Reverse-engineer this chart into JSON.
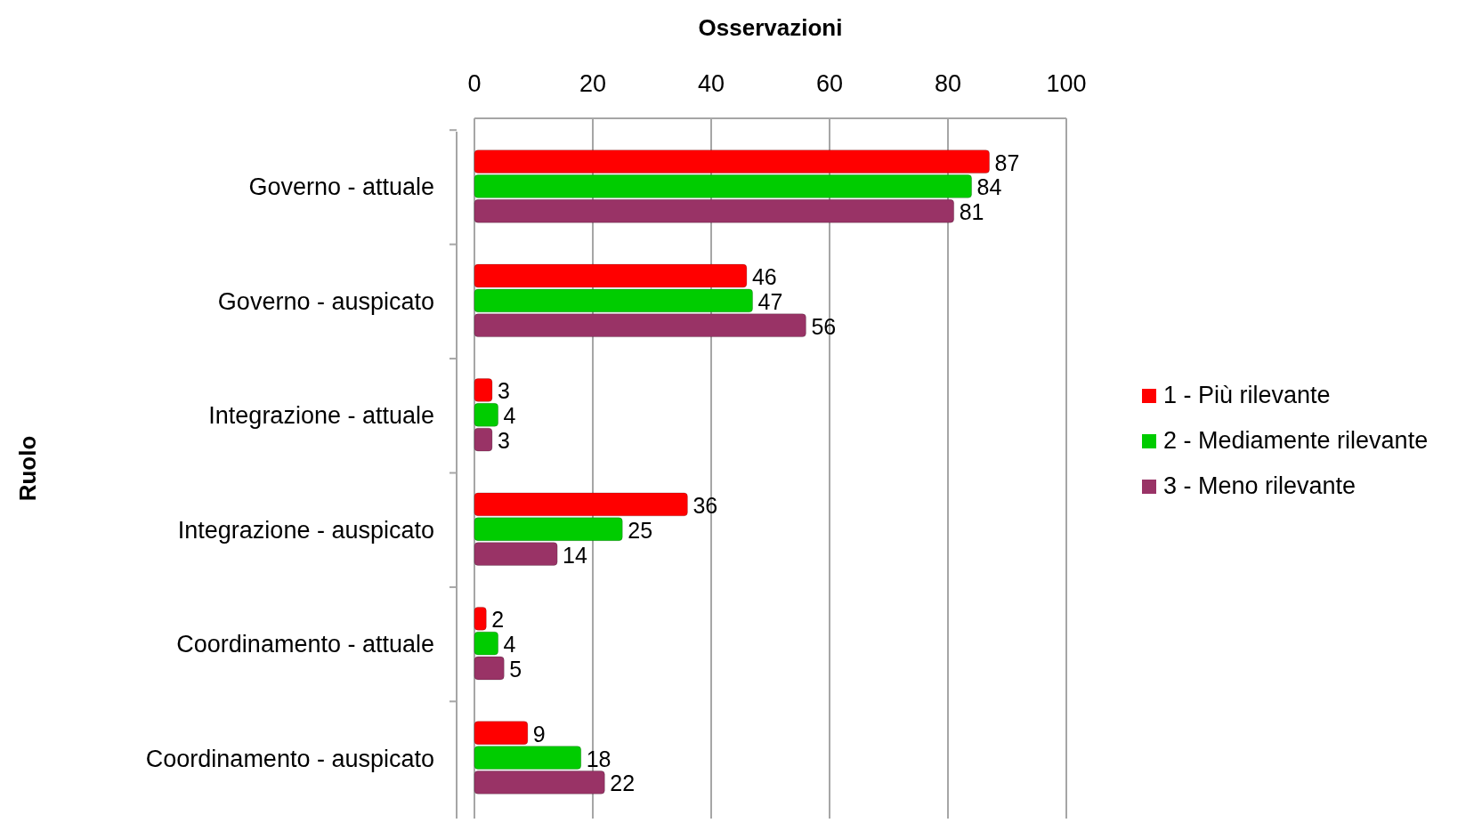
{
  "chart_data": {
    "type": "bar",
    "orientation": "horizontal",
    "xlabel": "Osservazioni",
    "ylabel": "Ruolo",
    "categories": [
      "Governo - attuale",
      "Governo - auspicato",
      "Integrazione - attuale",
      "Integrazione - auspicato",
      "Coordinamento - attuale",
      "Coordinamento - auspicato"
    ],
    "series": [
      {
        "name": "1 - Più rilevante",
        "color": "#ff0000",
        "values": [
          87,
          46,
          3,
          36,
          2,
          9
        ]
      },
      {
        "name": "2 - Mediamente rilevante",
        "color": "#00cc00",
        "values": [
          84,
          47,
          4,
          25,
          4,
          18
        ]
      },
      {
        "name": "3 - Meno rilevante",
        "color": "#993366",
        "values": [
          81,
          56,
          3,
          14,
          5,
          22
        ]
      }
    ],
    "xlim": [
      0,
      100
    ],
    "xticks": [
      0,
      20,
      40,
      60,
      80,
      100
    ],
    "grid": "x",
    "legend": "right",
    "data_labels": true
  }
}
